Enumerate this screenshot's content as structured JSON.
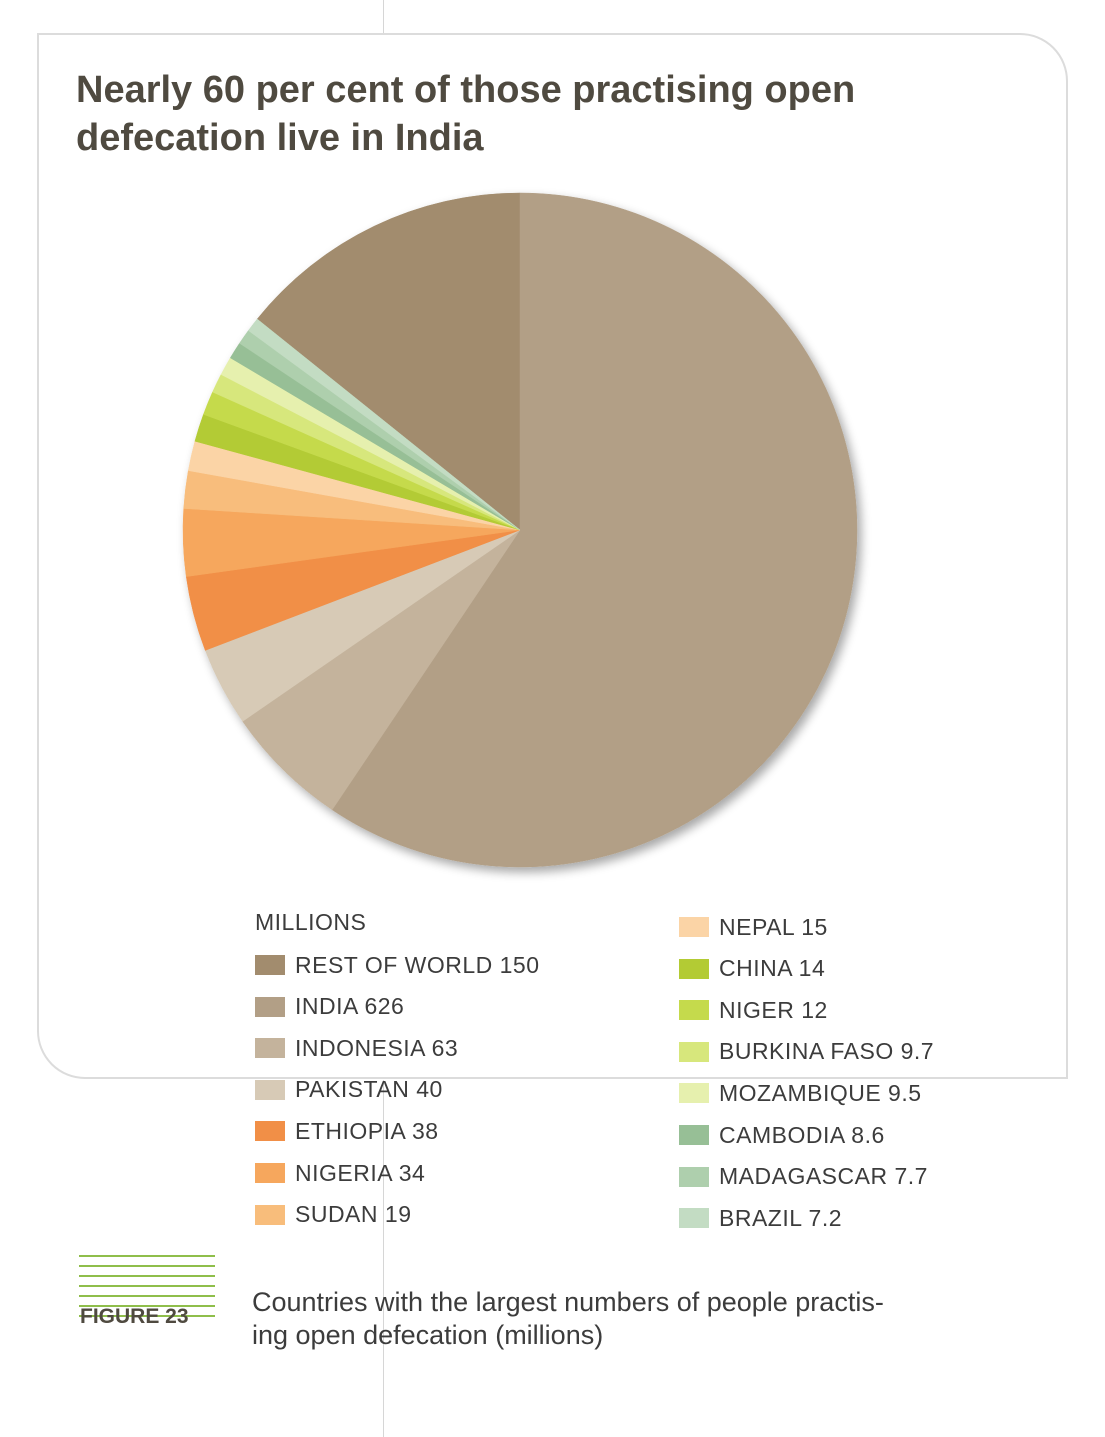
{
  "title": "Nearly 60 per cent of those practising open defecation live in India",
  "legend_caption": "MILLIONS",
  "figure": {
    "label": "FIGURE 23",
    "caption": "Countries with the largest numbers of people practis-ing open defecation (millions)"
  },
  "chart_data": {
    "type": "pie",
    "title": "Nearly 60 per cent of those practising open defecation live in India",
    "unit": "millions",
    "legend_placement": "bottom",
    "slices": [
      {
        "name": "REST OF WORLD",
        "value": 150,
        "label": "REST OF WORLD 150",
        "color": "#a28c6e"
      },
      {
        "name": "INDIA",
        "value": 626,
        "label": "INDIA 626",
        "color": "#b29f86"
      },
      {
        "name": "INDONESIA",
        "value": 63,
        "label": "INDONESIA 63",
        "color": "#c4b39c"
      },
      {
        "name": "PAKISTAN",
        "value": 40,
        "label": "PAKISTAN 40",
        "color": "#d7cab6"
      },
      {
        "name": "ETHIOPIA",
        "value": 38,
        "label": "ETHIOPIA 38",
        "color": "#f18f47"
      },
      {
        "name": "NIGERIA",
        "value": 34,
        "label": "NIGERIA 34",
        "color": "#f6a75d"
      },
      {
        "name": "SUDAN",
        "value": 19,
        "label": "SUDAN 19",
        "color": "#f8bd7b"
      },
      {
        "name": "NEPAL",
        "value": 15,
        "label": "NEPAL 15",
        "color": "#fbd4a6"
      },
      {
        "name": "CHINA",
        "value": 14,
        "label": "CHINA 14",
        "color": "#b3cb34"
      },
      {
        "name": "NIGER",
        "value": 12,
        "label": "NIGER 12",
        "color": "#c5da4c"
      },
      {
        "name": "BURKINA FASO",
        "value": 9.7,
        "label": "BURKINA FASO 9.7",
        "color": "#d7e77c"
      },
      {
        "name": "MOZAMBIQUE",
        "value": 9.5,
        "label": "MOZAMBIQUE 9.5",
        "color": "#e6f0ae"
      },
      {
        "name": "CAMBODIA",
        "value": 8.6,
        "label": "CAMBODIA 8.6",
        "color": "#97bf96"
      },
      {
        "name": "MADAGASCAR",
        "value": 7.7,
        "label": "MADAGASCAR 7.7",
        "color": "#aecfad"
      },
      {
        "name": "BRAZIL",
        "value": 7.2,
        "label": "BRAZIL 7.2",
        "color": "#c3dcc3"
      }
    ]
  }
}
